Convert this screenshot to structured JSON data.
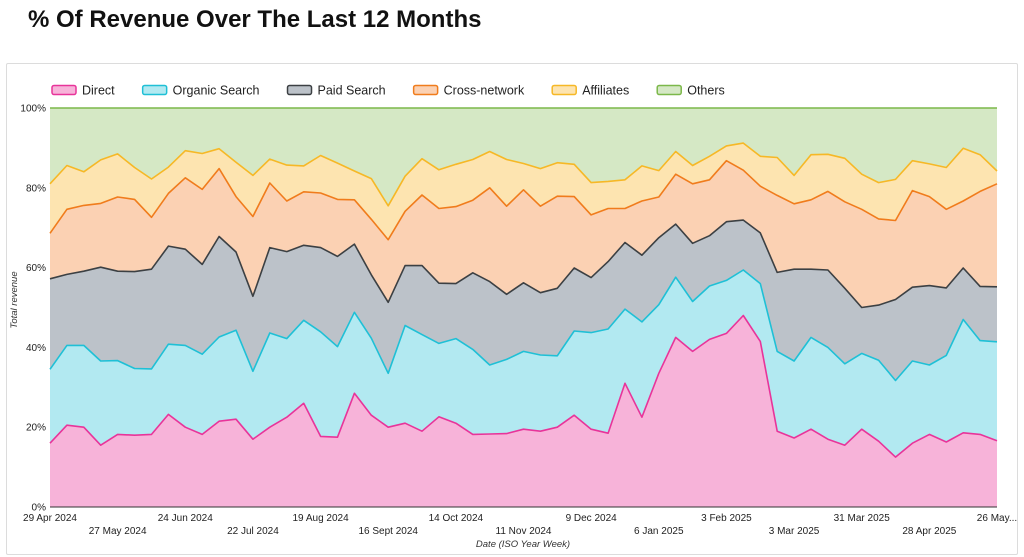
{
  "title": "% Of Revenue Over The Last 12 Months",
  "chart_data": {
    "type": "area",
    "stacked": true,
    "normalized": true,
    "xlabel": "Date (ISO Year Week)",
    "ylabel": "Total revenue",
    "ylim": [
      0,
      100
    ],
    "y_ticks": [
      "0%",
      "20%",
      "40%",
      "60%",
      "80%",
      "100%"
    ],
    "x_tick_labels": [
      {
        "label": "29 Apr 2024",
        "index": 0,
        "row": 1
      },
      {
        "label": "27 May 2024",
        "index": 4,
        "row": 2
      },
      {
        "label": "24 Jun 2024",
        "index": 8,
        "row": 1
      },
      {
        "label": "22 Jul 2024",
        "index": 12,
        "row": 2
      },
      {
        "label": "19 Aug 2024",
        "index": 16,
        "row": 1
      },
      {
        "label": "16 Sept 2024",
        "index": 20,
        "row": 2
      },
      {
        "label": "14 Oct 2024",
        "index": 24,
        "row": 1
      },
      {
        "label": "11 Nov 2024",
        "index": 28,
        "row": 2
      },
      {
        "label": "9 Dec 2024",
        "index": 32,
        "row": 1
      },
      {
        "label": "6 Jan 2025",
        "index": 36,
        "row": 2
      },
      {
        "label": "3 Feb 2025",
        "index": 40,
        "row": 1
      },
      {
        "label": "3 Mar 2025",
        "index": 44,
        "row": 2
      },
      {
        "label": "31 Mar 2025",
        "index": 48,
        "row": 1
      },
      {
        "label": "28 Apr 2025",
        "index": 52,
        "row": 2
      },
      {
        "label": "26 May...",
        "index": 56,
        "row": 1
      }
    ],
    "legend_position": "top-left",
    "series": [
      {
        "name": "Direct",
        "color": "#e8349a",
        "fill": "#f7b3d9",
        "cumulative": [
          16,
          20.5,
          20,
          15.5,
          18.2,
          18,
          18.2,
          23.2,
          20,
          18.2,
          21.5,
          22,
          17,
          20,
          22.5,
          26,
          17.7,
          17.5,
          28.5,
          23,
          20,
          21,
          19,
          22.6,
          21,
          18.2,
          18.3,
          18.4,
          19.5,
          19,
          20,
          23,
          19.5,
          18.5,
          31,
          22.5,
          33.5,
          42.5,
          39,
          42,
          43.5,
          48,
          41.5,
          19,
          17.3,
          19.5,
          17,
          15.5,
          19.5,
          16.5,
          12.5,
          16,
          18.2,
          16.3,
          18.6,
          18.2,
          16.6
        ]
      },
      {
        "name": "Organic Search",
        "color": "#1fc0d6",
        "fill": "#b2e9f1",
        "cumulative": [
          34.5,
          40.5,
          40.5,
          36.6,
          36.7,
          34.7,
          34.6,
          40.8,
          40.5,
          38.3,
          42.6,
          44.3,
          34,
          43.6,
          42.2,
          46.8,
          43.9,
          40.2,
          48.8,
          42.3,
          33.5,
          45.5,
          43.2,
          41,
          42.2,
          39.5,
          35.6,
          37,
          39,
          38.1,
          37.9,
          44.1,
          43.7,
          44.6,
          49.6,
          46.4,
          50.7,
          57.6,
          51.5,
          55.4,
          56.8,
          59.4,
          56,
          39,
          36.6,
          42.5,
          40,
          35.9,
          38.5,
          36.8,
          31.7,
          36.6,
          35.6,
          38,
          47,
          41.7,
          41.4
        ]
      },
      {
        "name": "Paid Search",
        "color": "#3c4043",
        "fill": "#bcc2c9",
        "cumulative": [
          57.2,
          58.3,
          59.1,
          60.1,
          59.1,
          59,
          59.6,
          65.4,
          64.6,
          60.8,
          67.8,
          63.9,
          52.8,
          65,
          64,
          65.6,
          65,
          62.8,
          65.9,
          58.2,
          51.3,
          60.5,
          60.5,
          56.1,
          56,
          58.7,
          56.5,
          53.3,
          56.2,
          53.7,
          54.8,
          59.9,
          57.5,
          61.5,
          66.3,
          63.1,
          67.5,
          70.9,
          66.1,
          68,
          71.5,
          71.9,
          68.7,
          58.8,
          59.6,
          59.6,
          59.4,
          54.8,
          50,
          50.6,
          52,
          55.1,
          55.5,
          54.9,
          59.9,
          55.3,
          55.2
        ]
      },
      {
        "name": "Cross-network",
        "color": "#f07c1c",
        "fill": "#fbd1b3",
        "cumulative": [
          68.6,
          74.6,
          75.6,
          76.1,
          77.7,
          77.1,
          72.6,
          78.6,
          82.5,
          79.6,
          84.8,
          77.8,
          72.8,
          81.2,
          76.7,
          79,
          78.7,
          77.1,
          77,
          72.1,
          67,
          74.1,
          78.2,
          74.8,
          75.3,
          76.9,
          80,
          75.4,
          79.5,
          75.4,
          77.9,
          77.8,
          73.2,
          74.8,
          74.8,
          76.7,
          77.7,
          83.4,
          81,
          82,
          86.8,
          84.4,
          80.4,
          78.1,
          76,
          77,
          79.1,
          76.5,
          74.6,
          72.2,
          71.8,
          79.3,
          77.8,
          74.6,
          76.7,
          79.1,
          81
        ]
      },
      {
        "name": "Affiliates",
        "color": "#f6b826",
        "fill": "#fde4b0",
        "cumulative": [
          81,
          85.6,
          84,
          87,
          88.5,
          85.1,
          82.2,
          85.2,
          89.3,
          88.6,
          89.8,
          86.4,
          83.1,
          87.2,
          85.7,
          85.5,
          88.1,
          86.2,
          84.2,
          82.3,
          75.5,
          82.9,
          87.3,
          84.5,
          85.9,
          87.1,
          89.1,
          87.1,
          86.1,
          84.8,
          86.3,
          85.9,
          81.3,
          81.6,
          82,
          85.5,
          84.3,
          89.1,
          85.6,
          87.9,
          90.5,
          91.2,
          87.9,
          87.6,
          83.1,
          88.3,
          88.4,
          87.4,
          83.4,
          81.3,
          82.1,
          86.8,
          86,
          85.1,
          89.9,
          88.3,
          84.2
        ]
      },
      {
        "name": "Others",
        "color": "#7cb84a",
        "fill": "#d5e8c5",
        "cumulative": [
          100,
          100,
          100,
          100,
          100,
          100,
          100,
          100,
          100,
          100,
          100,
          100,
          100,
          100,
          100,
          100,
          100,
          100,
          100,
          100,
          100,
          100,
          100,
          100,
          100,
          100,
          100,
          100,
          100,
          100,
          100,
          100,
          100,
          100,
          100,
          100,
          100,
          100,
          100,
          100,
          100,
          100,
          100,
          100,
          100,
          100,
          100,
          100,
          100,
          100,
          100,
          100,
          100,
          100,
          100,
          100,
          100
        ]
      }
    ]
  }
}
